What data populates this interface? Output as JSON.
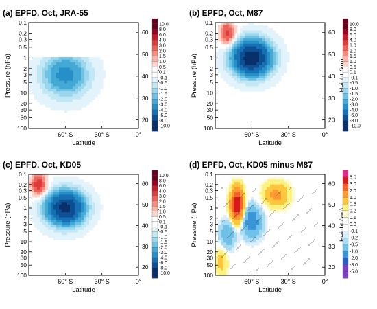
{
  "chart_data": [
    {
      "type": "heatmap",
      "title": "(a) EPFD, Oct, JRA-55",
      "xlabel": "Latitude",
      "ylabel": "Pressure (hPa)",
      "ylabel_right": "Height (km)",
      "x_ticks": [
        "60° S",
        "30° S",
        "0°"
      ],
      "x_tick_values": [
        -60,
        -30,
        0
      ],
      "xlim": [
        -90,
        0
      ],
      "y_scale": "log",
      "y_ticks": [
        "0.1",
        "0.2",
        "0.3",
        "0.5",
        "1",
        "2",
        "3",
        "5",
        "10",
        "20",
        "30",
        "50",
        "100"
      ],
      "y_tick_values": [
        0.1,
        0.2,
        0.3,
        0.5,
        1,
        2,
        3,
        5,
        10,
        20,
        30,
        50,
        100
      ],
      "ylim": [
        100,
        0.1
      ],
      "height_ticks": [
        "20",
        "30",
        "40",
        "50",
        "60"
      ],
      "height_tick_values": [
        20,
        30,
        40,
        50,
        60
      ],
      "colorbar_labels": [
        "10.0",
        "8.0",
        "6.0",
        "4.0",
        "3.0",
        "2.0",
        "1.5",
        "1.0",
        "0.5",
        "0.1",
        "-0.1",
        "-0.5",
        "-1.0",
        "-1.5",
        "-2.0",
        "-3.0",
        "-4.0",
        "-6.0",
        "-8.0",
        "-10.0"
      ],
      "data_top_hPa": 1.0,
      "blobs": [
        {
          "lat": -60,
          "p": 3,
          "v": -3.5,
          "slat": 17,
          "slog": 0.55
        }
      ],
      "stipple": false
    },
    {
      "type": "heatmap",
      "title": "(b) EPFD, Oct, M87",
      "xlabel": "Latitude",
      "ylabel": "Pressure (hPa)",
      "ylabel_right": "Height (km)",
      "x_ticks": [
        "60° S",
        "30° S",
        "0°"
      ],
      "x_tick_values": [
        -60,
        -30,
        0
      ],
      "xlim": [
        -90,
        0
      ],
      "y_scale": "log",
      "y_ticks": [
        "0.1",
        "0.2",
        "0.3",
        "0.5",
        "1",
        "2",
        "3",
        "5",
        "10",
        "20",
        "30",
        "50",
        "100"
      ],
      "y_tick_values": [
        0.1,
        0.2,
        0.3,
        0.5,
        1,
        2,
        3,
        5,
        10,
        20,
        30,
        50,
        100
      ],
      "ylim": [
        100,
        0.1
      ],
      "height_ticks": [
        "20",
        "30",
        "40",
        "50",
        "60"
      ],
      "height_tick_values": [
        20,
        30,
        40,
        50,
        60
      ],
      "colorbar_labels": [
        "10.0",
        "8.0",
        "6.0",
        "4.0",
        "3.0",
        "2.0",
        "1.5",
        "1.0",
        "0.5",
        "0.1",
        "-0.1",
        "-0.5",
        "-1.0",
        "-1.5",
        "-2.0",
        "-3.0",
        "-4.0",
        "-6.0",
        "-8.0",
        "-10.0"
      ],
      "data_top_hPa": 0.1,
      "blobs": [
        {
          "lat": -60,
          "p": 1,
          "v": -10.0,
          "slat": 14,
          "slog": 0.45
        },
        {
          "lat": -80,
          "p": 0.2,
          "v": 3.5,
          "slat": 6,
          "slog": 0.3
        }
      ],
      "stipple": false
    },
    {
      "type": "heatmap",
      "title": "(c) EPFD, Oct, KD05",
      "xlabel": "Latitude",
      "ylabel": "Pressure (hPa)",
      "ylabel_right": "Height (km)",
      "x_ticks": [
        "60° S",
        "30° S",
        "0°"
      ],
      "x_tick_values": [
        -60,
        -30,
        0
      ],
      "xlim": [
        -90,
        0
      ],
      "y_scale": "log",
      "y_ticks": [
        "0.1",
        "0.2",
        "0.3",
        "0.5",
        "1",
        "2",
        "3",
        "5",
        "10",
        "20",
        "30",
        "50",
        "100"
      ],
      "y_tick_values": [
        0.1,
        0.2,
        0.3,
        0.5,
        1,
        2,
        3,
        5,
        10,
        20,
        30,
        50,
        100
      ],
      "ylim": [
        100,
        0.1
      ],
      "height_ticks": [
        "20",
        "30",
        "40",
        "50",
        "60"
      ],
      "height_tick_values": [
        20,
        30,
        40,
        50,
        60
      ],
      "colorbar_labels": [
        "10.0",
        "8.0",
        "6.0",
        "4.0",
        "3.0",
        "2.0",
        "1.5",
        "1.0",
        "0.5",
        "0.1",
        "-0.1",
        "-0.5",
        "-1.0",
        "-1.5",
        "-2.0",
        "-3.0",
        "-4.0",
        "-6.0",
        "-8.0",
        "-10.0"
      ],
      "data_top_hPa": 0.1,
      "blobs": [
        {
          "lat": -60,
          "p": 1,
          "v": -9.0,
          "slat": 14,
          "slog": 0.45
        },
        {
          "lat": -82,
          "p": 0.2,
          "v": 4.0,
          "slat": 6,
          "slog": 0.3
        }
      ],
      "stipple": false
    },
    {
      "type": "heatmap",
      "title": "(d) EPFD, Oct, KD05 minus M87",
      "xlabel": "Latitude",
      "ylabel": "Pressure (hPa)",
      "ylabel_right": "Height (km)",
      "x_ticks": [
        "60° S",
        "30° S",
        "0°"
      ],
      "x_tick_values": [
        -60,
        -30,
        0
      ],
      "xlim": [
        -90,
        0
      ],
      "y_scale": "log",
      "y_ticks": [
        "0.1",
        "0.2",
        "0.3",
        "0.5",
        "1",
        "2",
        "3",
        "5",
        "10",
        "20",
        "30",
        "50",
        "100"
      ],
      "y_tick_values": [
        0.1,
        0.2,
        0.3,
        0.5,
        1,
        2,
        3,
        5,
        10,
        20,
        30,
        50,
        100
      ],
      "ylim": [
        100,
        0.1
      ],
      "height_ticks": [
        "20",
        "30",
        "40",
        "50",
        "60"
      ],
      "height_tick_values": [
        20,
        30,
        40,
        50,
        60
      ],
      "colorbar_labels": [
        "5.0",
        "3.0",
        "2.0",
        "1.0",
        "0.5",
        "0.2",
        "0.1",
        "0.0",
        "-0.1",
        "-0.2",
        "-0.5",
        "-1.0",
        "-2.0",
        "-3.0",
        "-5.0"
      ],
      "data_top_hPa": 0.1,
      "blobs": [
        {
          "lat": -72,
          "p": 0.8,
          "v": 4.0,
          "slat": 5,
          "slog": 0.45
        },
        {
          "lat": -40,
          "p": 0.4,
          "v": 1.2,
          "slat": 10,
          "slog": 0.35
        },
        {
          "lat": -60,
          "p": 2.5,
          "v": -1.5,
          "slat": 8,
          "slog": 0.45
        },
        {
          "lat": -80,
          "p": 6,
          "v": -1.0,
          "slat": 6,
          "slog": 0.4
        },
        {
          "lat": -85,
          "p": 40,
          "v": 0.7,
          "slat": 5,
          "slog": 0.4
        }
      ],
      "stipple": true
    }
  ]
}
